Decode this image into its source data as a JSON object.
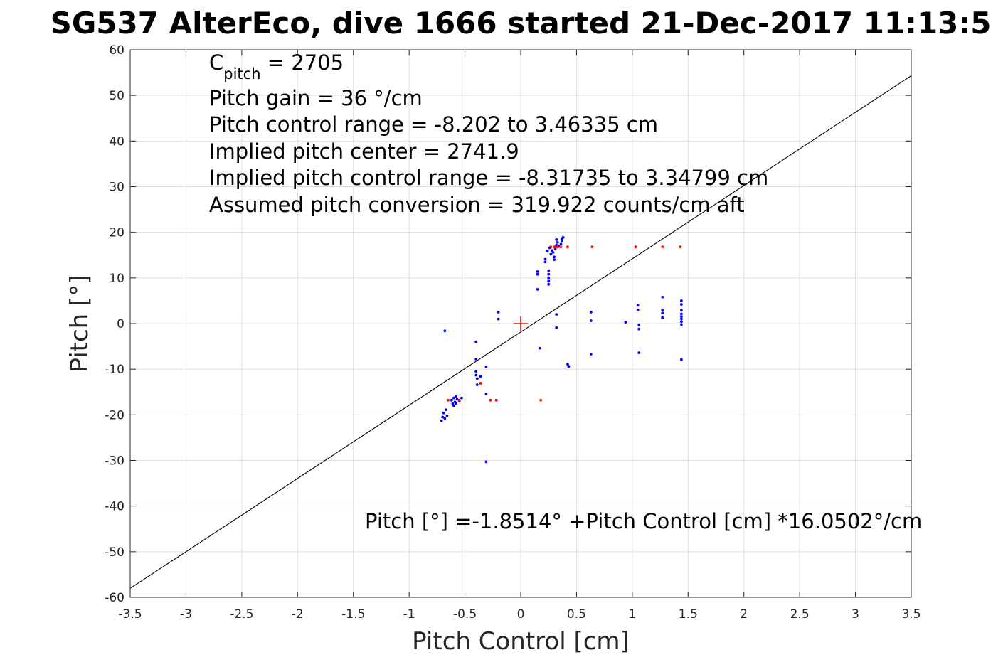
{
  "chart_data": {
    "type": "scatter",
    "title": "SG537 AlterEco, dive 1666 started 21-Dec-2017 11:13:5",
    "xlabel": "Pitch Control [cm]",
    "ylabel": "Pitch [°]",
    "xlim": [
      -3.5,
      3.5
    ],
    "ylim": [
      -60,
      60
    ],
    "x_ticks": [
      "-3.5",
      "-3",
      "-2.5",
      "-2",
      "-1.5",
      "-1",
      "-0.5",
      "0",
      "0.5",
      "1",
      "1.5",
      "2",
      "2.5",
      "3",
      "3.5"
    ],
    "y_ticks": [
      "-60",
      "-50",
      "-40",
      "-30",
      "-20",
      "-10",
      "0",
      "10",
      "20",
      "30",
      "40",
      "50",
      "60"
    ],
    "grid": true,
    "annotations": {
      "c_pitch_base": "C",
      "c_pitch_sub": "pitch",
      "c_pitch_value": " = 2705",
      "line2": "Pitch gain = 36 °/cm",
      "line3": "Pitch control range = -8.202 to 3.46335 cm",
      "line4": "Implied pitch center = 2741.9",
      "line5": "Implied pitch control range = -8.31735 to 3.34799 cm",
      "line6": "Assumed pitch conversion = 319.922 counts/cm aft",
      "fit_equation": "Pitch [°] =-1.8514° +Pitch Control [cm] *16.0502°/cm"
    },
    "fit_line": {
      "intercept": -1.8514,
      "slope": 16.0502,
      "color": "#000000"
    },
    "center_marker": {
      "x": 0,
      "y": 0,
      "color": "#ff0000"
    },
    "series": [
      {
        "color": "#0000ff",
        "points": [
          [
            -0.71,
            -21.3
          ],
          [
            -0.7,
            -20.5
          ],
          [
            -0.69,
            -19.6
          ],
          [
            -0.68,
            -20.8
          ],
          [
            -0.67,
            -18.9
          ],
          [
            -0.66,
            -20.2
          ],
          [
            -0.62,
            -16.8
          ],
          [
            -0.61,
            -17.6
          ],
          [
            -0.6,
            -16.3
          ],
          [
            -0.6,
            -18.0
          ],
          [
            -0.59,
            -17.2
          ],
          [
            -0.58,
            -16.0
          ],
          [
            -0.58,
            -17.5
          ],
          [
            -0.57,
            -16.6
          ],
          [
            -0.55,
            -16.9
          ],
          [
            -0.53,
            -16.3
          ],
          [
            -0.68,
            -1.6
          ],
          [
            -0.4,
            -4.0
          ],
          [
            -0.4,
            -7.8
          ],
          [
            -0.4,
            -10.5
          ],
          [
            -0.4,
            -11.3
          ],
          [
            -0.39,
            -12.1
          ],
          [
            -0.39,
            -13.4
          ],
          [
            -0.36,
            -11.6
          ],
          [
            -0.31,
            -9.5
          ],
          [
            -0.31,
            -15.4
          ],
          [
            -0.31,
            -30.3
          ],
          [
            -0.2,
            2.5
          ],
          [
            -0.2,
            1.0
          ],
          [
            0.15,
            7.5
          ],
          [
            0.15,
            10.8
          ],
          [
            0.15,
            11.4
          ],
          [
            0.17,
            -5.4
          ],
          [
            0.22,
            13.5
          ],
          [
            0.22,
            14.1
          ],
          [
            0.24,
            15.9
          ],
          [
            0.25,
            8.6
          ],
          [
            0.25,
            9.3
          ],
          [
            0.25,
            10.0
          ],
          [
            0.25,
            10.8
          ],
          [
            0.25,
            11.6
          ],
          [
            0.26,
            16.6
          ],
          [
            0.27,
            15.2
          ],
          [
            0.28,
            16.0
          ],
          [
            0.29,
            15.6
          ],
          [
            0.3,
            14.0
          ],
          [
            0.3,
            14.6
          ],
          [
            0.31,
            16.3
          ],
          [
            0.32,
            17.2
          ],
          [
            0.32,
            18.4
          ],
          [
            0.33,
            17.8
          ],
          [
            0.34,
            16.9
          ],
          [
            0.36,
            17.4
          ],
          [
            0.37,
            18.0
          ],
          [
            0.37,
            18.6
          ],
          [
            0.38,
            18.9
          ],
          [
            0.32,
            2.0
          ],
          [
            0.32,
            -0.9
          ],
          [
            0.42,
            -8.9
          ],
          [
            0.43,
            -9.4
          ],
          [
            0.63,
            2.5
          ],
          [
            0.63,
            0.6
          ],
          [
            0.63,
            -6.7
          ],
          [
            0.94,
            0.3
          ],
          [
            1.05,
            4.0
          ],
          [
            1.05,
            3.0
          ],
          [
            1.06,
            -0.3
          ],
          [
            1.06,
            -1.2
          ],
          [
            1.06,
            -6.4
          ],
          [
            1.27,
            5.8
          ],
          [
            1.27,
            2.9
          ],
          [
            1.27,
            2.3
          ],
          [
            1.27,
            1.3
          ],
          [
            1.44,
            5.0
          ],
          [
            1.44,
            4.2
          ],
          [
            1.44,
            2.9
          ],
          [
            1.44,
            2.1
          ],
          [
            1.44,
            1.5
          ],
          [
            1.44,
            1.0
          ],
          [
            1.44,
            0.4
          ],
          [
            1.44,
            -0.2
          ],
          [
            1.44,
            -7.9
          ]
        ]
      },
      {
        "color": "#ff0000",
        "points": [
          [
            -0.65,
            -16.8
          ],
          [
            -0.55,
            -16.8
          ],
          [
            -0.36,
            -13.1
          ],
          [
            -0.27,
            -16.8
          ],
          [
            -0.22,
            -16.8
          ],
          [
            0.18,
            -16.8
          ],
          [
            0.27,
            16.8
          ],
          [
            0.3,
            16.8
          ],
          [
            0.33,
            16.8
          ],
          [
            0.36,
            16.8
          ],
          [
            0.42,
            16.8
          ],
          [
            0.64,
            16.8
          ],
          [
            1.03,
            16.8
          ],
          [
            1.27,
            16.8
          ],
          [
            1.43,
            16.8
          ]
        ]
      }
    ]
  }
}
